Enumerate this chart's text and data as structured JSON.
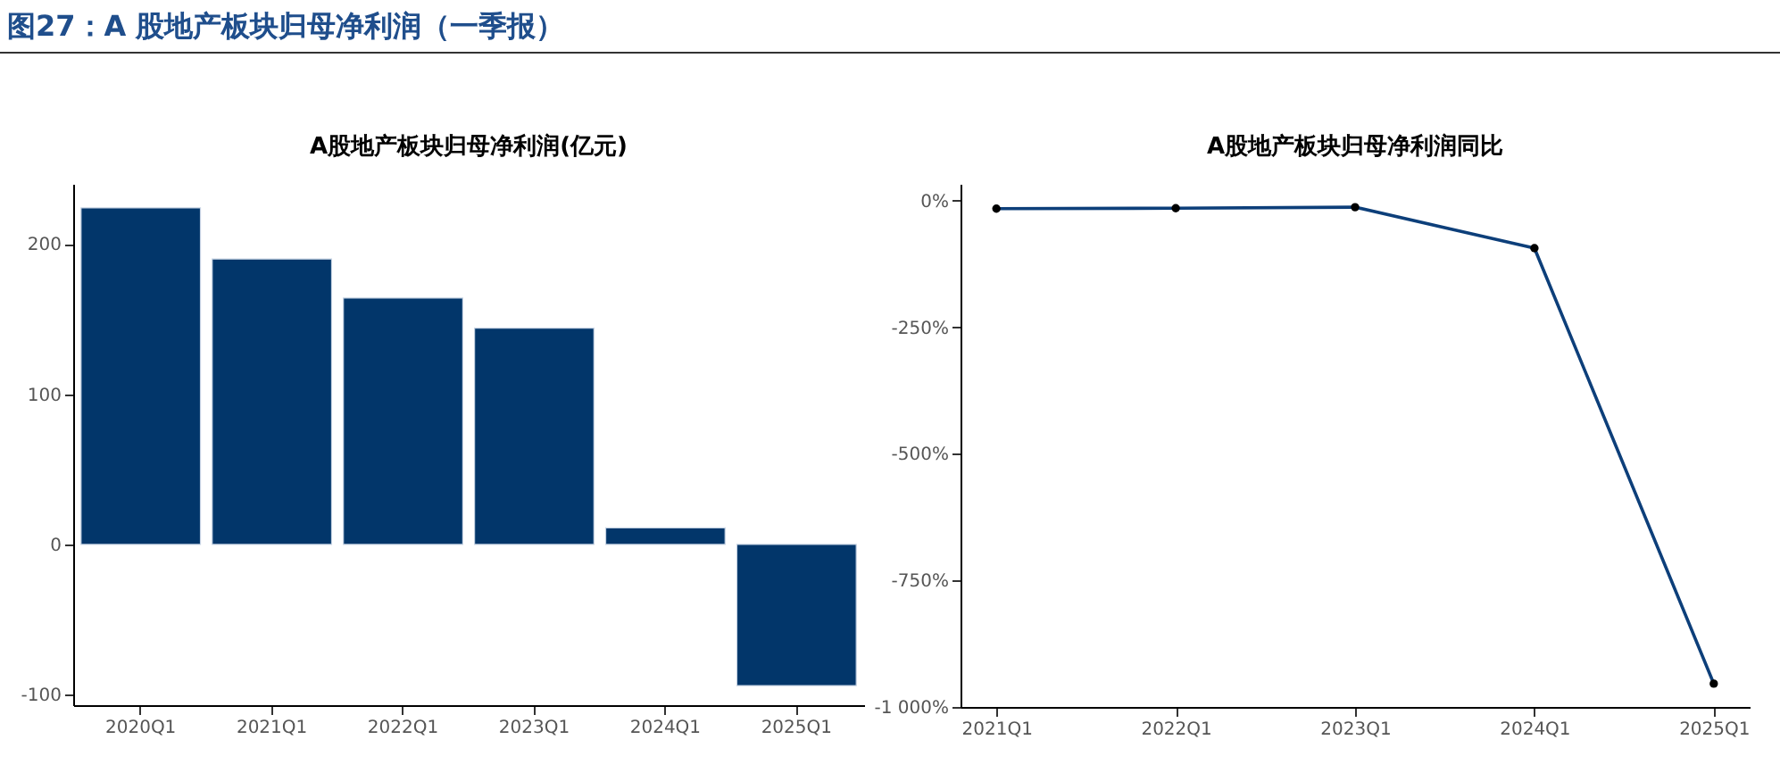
{
  "chart_data": [
    {
      "type": "other",
      "title": "图27：A 股地产板块归母净利润（一季报）"
    },
    {
      "type": "bar",
      "title": "A股地产板块归母净利润(亿元)",
      "categories": [
        "2020Q1",
        "2021Q1",
        "2022Q1",
        "2023Q1",
        "2024Q1",
        "2025Q1"
      ],
      "values": [
        224,
        190,
        164,
        144,
        11,
        -94
      ],
      "color": "#02366a",
      "ylim": [
        -107,
        240
      ],
      "yticks": [
        -100,
        0,
        100,
        200
      ],
      "grid": false
    },
    {
      "type": "line",
      "title": "A股地产板块归母净利润同比",
      "categories": [
        "2021Q1",
        "2022Q1",
        "2023Q1",
        "2024Q1",
        "2025Q1"
      ],
      "series": [
        {
          "color": "#0d3f7a",
          "values": [
            -16,
            -15,
            -13,
            -94,
            -954
          ]
        }
      ],
      "marker": "circle",
      "line_style": "solid",
      "ylim": [
        -1000,
        33
      ],
      "yticks": [
        {
          "value": 0,
          "label": "0%"
        },
        {
          "value": -250,
          "label": "-250%"
        },
        {
          "value": -500,
          "label": "-500%"
        },
        {
          "value": -750,
          "label": "-750%"
        },
        {
          "value": -1000,
          "label": "-1 000%"
        }
      ],
      "grid": false
    }
  ]
}
